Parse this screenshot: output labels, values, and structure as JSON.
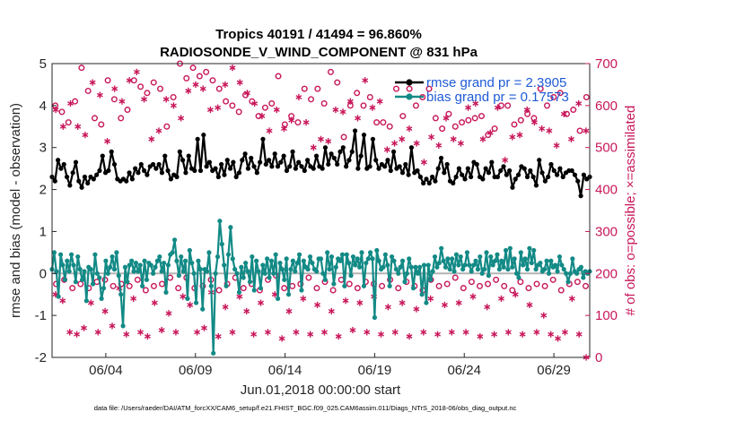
{
  "chart_data": {
    "type": "line",
    "title_line1": "Tropics 40191 / 41494 = 96.860%",
    "title_line2": "RADIOSONDE_V_WIND_COMPONENT @ 831 hPa",
    "xlabel": "Jun.01,2018 00:00:00 start",
    "ylabel": "rmse and bias (model - observation)",
    "ylabel_right": "# of obs: o=possible; ×=assimilated",
    "x_ticks": [
      {
        "day": 4,
        "label": "06/04"
      },
      {
        "day": 9,
        "label": "06/09"
      },
      {
        "day": 14,
        "label": "06/14"
      },
      {
        "day": 19,
        "label": "06/19"
      },
      {
        "day": 24,
        "label": "06/24"
      },
      {
        "day": 29,
        "label": "06/29"
      }
    ],
    "xlim": [
      1,
      31
    ],
    "ylim": [
      -2,
      5
    ],
    "yticks": [
      "5",
      "4",
      "3",
      "2",
      "1",
      "0",
      "-1",
      "-2"
    ],
    "ylim_right": [
      0,
      700
    ],
    "yticks_right": [
      "700",
      "600",
      "500",
      "400",
      "300",
      "200",
      "100",
      "0"
    ],
    "grid": false,
    "legend_position": "top-right",
    "footnote": "data file: /Users/raeder/DAI/ATM_forcXX/CAM6_setup/f.e21.FHIST_BGC.f09_025.CAM6assim.011/Diags_NTrS_2018-06/obs_diag_output.nc",
    "series": [
      {
        "name": "rmse grand pr = 2.3905",
        "color": "#000000",
        "values": [
          2.3,
          2.2,
          2.7,
          2.5,
          2.6,
          2.3,
          2.1,
          2.4,
          2.65,
          2.2,
          2.05,
          2.3,
          2.15,
          2.3,
          2.25,
          2.35,
          2.45,
          2.8,
          2.4,
          2.45,
          2.9,
          2.6,
          2.25,
          2.2,
          2.25,
          2.2,
          2.4,
          2.25,
          2.5,
          2.4,
          2.6,
          2.45,
          2.35,
          2.55,
          2.6,
          2.5,
          2.6,
          2.4,
          2.8,
          2.45,
          2.25,
          2.35,
          2.3,
          2.9,
          2.7,
          2.4,
          2.8,
          2.5,
          2.45,
          3.2,
          2.45,
          3.3,
          2.55,
          2.65,
          2.45,
          2.5,
          2.3,
          2.6,
          2.35,
          2.7,
          2.5,
          2.65,
          2.3,
          2.4,
          2.7,
          2.85,
          2.5,
          2.75,
          2.55,
          2.4,
          2.65,
          3.2,
          2.6,
          2.7,
          2.55,
          2.85,
          2.55,
          2.65,
          2.8,
          2.45,
          2.55,
          2.9,
          2.5,
          2.65,
          2.55,
          2.45,
          2.7,
          2.55,
          2.5,
          2.8,
          2.55,
          2.5,
          3.0,
          2.6,
          2.85,
          2.75,
          2.6,
          2.9,
          3.0,
          2.55,
          2.7,
          2.9,
          3.4,
          2.5,
          2.8,
          3.3,
          2.5,
          2.55,
          3.2,
          2.7,
          2.5,
          2.6,
          2.55,
          2.7,
          2.45,
          2.9,
          2.5,
          2.55,
          2.4,
          2.6,
          2.35,
          3.0,
          2.4,
          2.45,
          2.3,
          2.15,
          2.25,
          2.15,
          2.3,
          2.2,
          2.5,
          2.75,
          2.4,
          2.6,
          2.2,
          2.15,
          2.3,
          2.5,
          2.35,
          2.25,
          2.5,
          2.3,
          2.65,
          2.6,
          2.3,
          2.25,
          2.5,
          2.4,
          2.65,
          2.3,
          2.3,
          2.45,
          2.55,
          2.35,
          2.45,
          2.05,
          2.25,
          2.35,
          2.55,
          2.5,
          2.3,
          2.45,
          2.3,
          2.1,
          2.7,
          2.4,
          2.2,
          2.3,
          2.6,
          2.45,
          2.35,
          2.5,
          2.3,
          2.4,
          2.45,
          2.45,
          2.35,
          2.2,
          1.85,
          2.35,
          2.25,
          2.3
        ]
      },
      {
        "name": "bias grand pr = 0.17573",
        "color": "#138a86",
        "values": [
          0.1,
          0.5,
          0.05,
          -0.55,
          0.45,
          0.2,
          -0.15,
          0.3,
          0.05,
          0.45,
          0.2,
          -0.2,
          0.4,
          0.1,
          -0.15,
          0.05,
          -0.65,
          0.15,
          0.1,
          -0.25,
          0.45,
          0.0,
          -0.1,
          -0.6,
          -0.35,
          0.3,
          0.0,
          0.15,
          0.4,
          0.1,
          0.5,
          -0.05,
          -0.5,
          -1.25,
          0.15,
          -0.2,
          0.2,
          0.3,
          0.05,
          0.25,
          0.05,
          0.2,
          -0.3,
          0.3,
          -0.15,
          0.25,
          0.2,
          0.0,
          0.15,
          0.3,
          0.4,
          0.05,
          0.25,
          -0.45,
          0.2,
          0.45,
          0.5,
          0.8,
          0.3,
          -0.05,
          0.4,
          0.05,
          0.3,
          -0.6,
          0.55,
          0.25,
          0.0,
          -0.7,
          0.3,
          0.1,
          -0.85,
          0.1,
          0.05,
          0.5,
          -0.3,
          -1.9,
          0.0,
          0.4,
          1.25,
          0.7,
          0.2,
          -0.3,
          0.45,
          1.1,
          0.35,
          0.1,
          0.0,
          -0.45,
          0.15,
          -0.1,
          0.25,
          0.05,
          -0.2,
          0.4,
          -0.4,
          0.3,
          0.05,
          -0.35,
          0.2,
          0.0,
          0.35,
          -0.1,
          0.3,
          0.0,
          0.45,
          -0.6,
          0.25,
          0.1,
          -0.15,
          0.35,
          -0.5,
          0.1,
          0.3,
          0.05,
          0.25,
          0.45,
          -0.4,
          0.3,
          0.15,
          0.1,
          0.4,
          0.25,
          0.1,
          0.05,
          0.35,
          0.35,
          0.0,
          -0.15,
          0.5,
          0.1,
          0.4,
          -0.25,
          0.15,
          0.35,
          0.3,
          0.45,
          -0.3,
          0.45,
          0.25,
          -0.05,
          0.4,
          0.2,
          0.35,
          0.15,
          0.5,
          -0.3,
          0.25,
          0.35,
          0.5,
          0.35,
          -1.05,
          0.55,
          0.3,
          0.1,
          0.15,
          0.45,
          0.2,
          -0.3,
          0.4,
          0.3,
          0.1,
          0.0,
          0.15,
          0.3,
          -0.2,
          0.0,
          0.35,
          0.15,
          -0.35,
          0.15,
          0.0,
          0.15,
          -0.5,
          0.2,
          -0.7,
          0.2,
          -0.15,
          0.05,
          0.4,
          0.15,
          0.25,
          0.6,
          0.3,
          0.15,
          0.35,
          0.1,
          0.35,
          0.05,
          0.45,
          0.2,
          0.4,
          0.1,
          0.2,
          0.5,
          0.2,
          0.05,
          0.2,
          0.3,
          0.1,
          0.4,
          0.0,
          0.1,
          0.5,
          -0.05,
          0.4,
          0.2,
          0.3,
          0.45,
          0.1,
          0.3,
          0.15,
          0.55,
          0.1,
          0.6,
          0.15,
          0.35,
          0.0,
          -0.1,
          0.5,
          0.2,
          0.35,
          0.1,
          0.6,
          0.25,
          0.55,
          0.1,
          0.2,
          0.25,
          0.05,
          0.1,
          0.3,
          0.0,
          0.3,
          0.15,
          0.2,
          0.05,
          0.4,
          0.2,
          0.1,
          0.0,
          -0.2,
          0.0,
          0.35,
          0.05,
          0.0,
          0.1,
          0.15,
          -0.1,
          0.05,
          0.0,
          0.05
        ]
      }
    ],
    "obs_possible_upper": [
      600,
      585,
      560,
      610,
      690,
      635,
      570,
      555,
      660,
      615,
      570,
      590,
      660,
      645,
      630,
      655,
      640,
      550,
      620,
      700,
      665,
      690,
      670,
      680,
      660,
      640,
      610,
      600,
      585,
      625,
      610,
      575,
      595,
      605,
      670,
      555,
      575,
      560,
      640,
      615,
      640,
      605,
      680,
      655,
      525,
      600,
      630,
      600,
      620,
      560,
      560,
      550,
      640,
      575,
      640,
      600,
      620,
      640,
      570,
      545,
      580,
      550,
      560,
      565,
      570,
      575,
      530,
      545,
      600,
      600,
      555,
      565,
      580,
      570,
      640,
      600,
      620,
      630,
      580,
      590,
      540,
      620
    ],
    "obs_assimilated_upper": [
      590,
      550,
      605,
      550,
      530,
      655,
      625,
      515,
      640,
      610,
      660,
      680,
      615,
      520,
      540,
      615,
      600,
      570,
      635,
      650,
      640,
      590,
      595,
      650,
      690,
      655,
      630,
      605,
      575,
      540,
      590,
      545,
      565,
      620,
      560,
      500,
      520,
      515,
      590,
      585,
      610,
      570,
      660,
      595,
      610,
      495,
      510,
      520,
      545,
      510,
      465,
      525,
      505,
      570,
      520,
      510,
      595,
      605,
      520,
      535,
      595,
      470,
      525,
      530,
      590,
      560,
      545,
      540,
      505,
      580,
      520,
      605,
      540
    ],
    "obs_possible_lower": [
      175,
      185,
      165,
      175,
      165,
      180,
      185,
      170,
      175,
      170,
      185,
      160,
      170,
      175,
      190,
      165,
      190,
      165,
      170,
      185,
      160,
      175,
      190,
      165,
      175,
      160,
      185,
      195,
      165,
      170,
      175,
      190,
      165,
      180,
      160,
      185,
      175,
      165,
      180,
      175,
      170,
      185,
      165,
      180,
      170,
      160,
      185,
      170,
      175,
      190,
      165,
      180,
      170,
      175,
      185,
      170,
      160,
      180,
      165,
      175,
      170,
      185,
      160,
      175,
      180,
      170
    ],
    "obs_assimilated_lower": [
      150,
      135,
      60,
      55,
      70,
      130,
      60,
      110,
      75,
      165,
      55,
      140,
      60,
      50,
      130,
      65,
      105,
      60,
      145,
      125,
      60,
      70,
      155,
      50,
      120,
      60,
      145,
      110,
      55,
      130,
      60,
      150,
      45,
      110,
      60,
      140,
      55,
      125,
      60,
      110,
      50,
      135,
      65,
      130,
      60,
      145,
      55,
      120,
      60,
      130,
      50,
      115,
      60,
      140,
      55,
      125,
      60,
      130,
      60,
      145,
      50,
      120,
      55,
      140,
      60,
      150,
      55,
      125,
      60,
      100,
      55,
      45,
      60,
      140,
      55,
      0
    ]
  }
}
